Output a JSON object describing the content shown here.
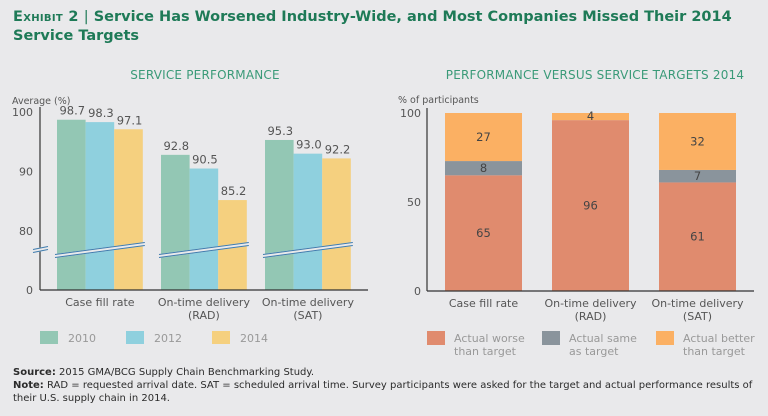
{
  "header": {
    "exhibit_label": "Exhibit 2",
    "separator": "|",
    "title": "Service Has Worsened Industry-Wide, and Most Companies Missed Their 2014 Service Targets"
  },
  "colors": {
    "title": "#1e7a57",
    "subtitle": "#3a9a78",
    "s2010": "#93c7b4",
    "s2012": "#8fd0de",
    "s2014": "#f5d07f",
    "worse": "#e08b6e",
    "same": "#8a949c",
    "better": "#fbb063"
  },
  "chart_data": [
    {
      "type": "bar",
      "title": "SERVICE PERFORMANCE",
      "ylabel": "Average (%)",
      "xlabel": "",
      "categories": [
        "Case fill rate",
        "On-time delivery (RAD)",
        "On-time delivery (SAT)"
      ],
      "category_lines": [
        [
          "Case fill rate"
        ],
        [
          "On-time delivery",
          "(RAD)"
        ],
        [
          "On-time delivery",
          "(SAT)"
        ]
      ],
      "series": [
        {
          "name": "2010",
          "values": [
            98.7,
            92.8,
            95.3
          ],
          "labels": [
            "98.7",
            "92.8",
            "95.3"
          ]
        },
        {
          "name": "2012",
          "values": [
            98.3,
            90.5,
            93.0
          ],
          "labels": [
            "98.3",
            "90.5",
            "93.0"
          ]
        },
        {
          "name": "2014",
          "values": [
            97.1,
            85.2,
            92.2
          ],
          "labels": [
            "97.1",
            "85.2",
            "92.2"
          ]
        }
      ],
      "yticks": [
        "100",
        "90",
        "80",
        "0"
      ],
      "ylim": [
        0,
        100
      ],
      "axis_break": "between 0 and 80",
      "grid": false,
      "legend": "bottom"
    },
    {
      "type": "bar",
      "stacked": true,
      "title": "PERFORMANCE VERSUS SERVICE TARGETS 2014",
      "ylabel": "% of participants",
      "xlabel": "",
      "categories": [
        "Case fill rate",
        "On-time delivery (RAD)",
        "On-time delivery (SAT)"
      ],
      "category_lines": [
        [
          "Case fill rate"
        ],
        [
          "On-time delivery",
          "(RAD)"
        ],
        [
          "On-time delivery",
          "(SAT)"
        ]
      ],
      "series": [
        {
          "name": "Actual worse than target",
          "legend_lines": [
            "Actual worse",
            "than target"
          ],
          "values": [
            65,
            96,
            61
          ],
          "labels": [
            "65",
            "96",
            "61"
          ]
        },
        {
          "name": "Actual same as target",
          "legend_lines": [
            "Actual same",
            "as target"
          ],
          "values": [
            8,
            0,
            7
          ],
          "labels": [
            "8",
            "",
            "7"
          ]
        },
        {
          "name": "Actual better than target",
          "legend_lines": [
            "Actual better",
            "than target"
          ],
          "values": [
            27,
            4,
            32
          ],
          "labels": [
            "27",
            "4",
            "32"
          ]
        }
      ],
      "yticks": [
        "100",
        "50",
        "0"
      ],
      "ylim": [
        0,
        100
      ],
      "grid": false,
      "legend": "bottom"
    }
  ],
  "footer": {
    "source_label": "Source:",
    "source_text": "2015 GMA/BCG Supply Chain Benchmarking Study.",
    "note_label": "Note:",
    "note_text": "RAD = requested arrival date. SAT = scheduled arrival time. Survey participants were asked for the target and actual performance results of their U.S. supply chain in 2014."
  }
}
